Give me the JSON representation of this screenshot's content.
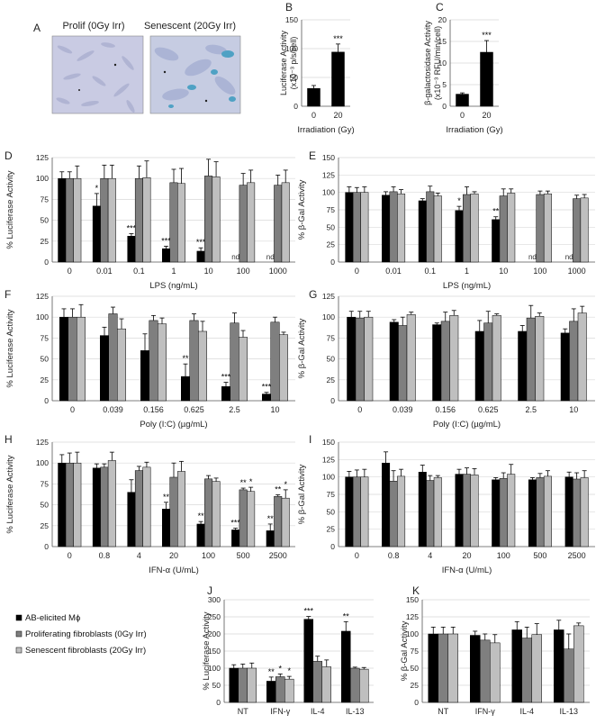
{
  "figure": {
    "legend": [
      {
        "label": "AB-elicited Mϕ",
        "color": "#000000"
      },
      {
        "label": "Proliferating fibroblasts (0Gy Irr)",
        "color": "#7f7f7f"
      },
      {
        "label": "Senescent fibroblasts (20Gy Irr)",
        "color": "#bfbfbf"
      }
    ],
    "images": {
      "panel": "A",
      "prolif_label": "Prolif (0Gy Irr)",
      "senescent_label": "Senescent (20Gy Irr)"
    }
  },
  "chart_data": [
    {
      "panel": "B",
      "type": "bar",
      "ylabel_line1": "Luciferase Activity",
      "ylabel_line2": "(x10⁻³ p/s/cell)",
      "xlabel": "Irradiation (Gy)",
      "categories": [
        "0",
        "20"
      ],
      "series": [
        {
          "values": [
            31,
            94
          ],
          "errors": [
            5,
            14
          ],
          "sig": [
            "",
            "***"
          ]
        }
      ],
      "ylim": [
        0,
        150
      ],
      "yticks": [
        "0",
        "50",
        "100",
        "150"
      ]
    },
    {
      "panel": "C",
      "type": "bar",
      "ylabel_line1": "β-galactosidase Activity",
      "ylabel_line2": "(x10⁻³ RFU/min/cell)",
      "xlabel": "Irradiation (Gy)",
      "categories": [
        "0",
        "20"
      ],
      "series": [
        {
          "values": [
            2.8,
            12.5
          ],
          "errors": [
            0.3,
            2.7
          ],
          "sig": [
            "",
            "***"
          ]
        }
      ],
      "ylim": [
        0,
        20
      ],
      "yticks": [
        "0",
        "5",
        "10",
        "15",
        "20"
      ]
    },
    {
      "panel": "D",
      "type": "bar",
      "ylabel": "% Luciferase Activity",
      "xlabel": "LPS (ng/mL)",
      "categories": [
        "0",
        "0.01",
        "0.1",
        "1",
        "10",
        "100",
        "1000"
      ],
      "series": [
        {
          "values": [
            100,
            67,
            31,
            16,
            13,
            null,
            null
          ],
          "errors": [
            8,
            15,
            3,
            3,
            4,
            0,
            0
          ],
          "sig": [
            "",
            "*",
            "***",
            "***",
            "***",
            "nd",
            "nd"
          ]
        },
        {
          "values": [
            100,
            100,
            100,
            95,
            103,
            92,
            92
          ],
          "errors": [
            8,
            16,
            15,
            16,
            20,
            14,
            12
          ],
          "sig": [
            "",
            "",
            "",
            "",
            "",
            "",
            ""
          ]
        },
        {
          "values": [
            100,
            100,
            101,
            94,
            102,
            95,
            95
          ],
          "errors": [
            15,
            16,
            20,
            18,
            18,
            15,
            15
          ],
          "sig": [
            "",
            "",
            "",
            "",
            "",
            "",
            ""
          ]
        }
      ],
      "ylim": [
        0,
        125
      ],
      "yticks": [
        "0",
        "25",
        "50",
        "75",
        "100",
        "125"
      ]
    },
    {
      "panel": "E",
      "type": "bar",
      "ylabel": "% β-Gal Activity",
      "xlabel": "LPS (ng/mL)",
      "categories": [
        "0",
        "0.01",
        "0.1",
        "1",
        "10",
        "100",
        "1000"
      ],
      "series": [
        {
          "values": [
            100,
            96,
            88,
            74,
            61,
            null,
            null
          ],
          "errors": [
            8,
            5,
            3,
            6,
            4,
            0,
            0
          ],
          "sig": [
            "",
            "",
            "",
            "*",
            "**",
            "nd",
            "nd"
          ]
        },
        {
          "values": [
            100,
            101,
            101,
            97,
            95,
            97,
            91
          ],
          "errors": [
            7,
            7,
            8,
            11,
            10,
            5,
            5
          ],
          "sig": [
            "",
            "",
            "",
            "",
            "",
            "",
            ""
          ]
        },
        {
          "values": [
            100,
            98,
            95,
            98,
            99,
            98,
            92
          ],
          "errors": [
            8,
            6,
            4,
            3,
            6,
            4,
            5
          ],
          "sig": [
            "",
            "",
            "",
            "",
            "",
            "",
            ""
          ]
        }
      ],
      "ylim": [
        0,
        150
      ],
      "yticks": [
        "0",
        "25",
        "50",
        "75",
        "100",
        "125",
        "150"
      ]
    },
    {
      "panel": "F",
      "type": "bar",
      "ylabel": "% Luciferase Activity",
      "xlabel": "Poly (I:C) (µg/mL)",
      "categories": [
        "0",
        "0.039",
        "0.156",
        "0.625",
        "2.5",
        "10"
      ],
      "series": [
        {
          "values": [
            100,
            78,
            60,
            29,
            17,
            8
          ],
          "errors": [
            10,
            10,
            20,
            15,
            5,
            2
          ],
          "sig": [
            "",
            "",
            "",
            "**",
            "***",
            "***"
          ]
        },
        {
          "values": [
            100,
            104,
            96,
            96,
            93,
            94
          ],
          "errors": [
            10,
            8,
            6,
            8,
            12,
            6
          ],
          "sig": [
            "",
            "",
            "",
            "",
            "",
            ""
          ]
        },
        {
          "values": [
            100,
            86,
            92,
            83,
            76,
            79
          ],
          "errors": [
            15,
            12,
            7,
            12,
            8,
            3
          ],
          "sig": [
            "",
            "",
            "",
            "",
            "",
            ""
          ]
        }
      ],
      "ylim": [
        0,
        125
      ],
      "yticks": [
        "0",
        "25",
        "50",
        "75",
        "100",
        "125"
      ]
    },
    {
      "panel": "G",
      "type": "bar",
      "ylabel": "% β-Gal Activity",
      "xlabel": "Poly (I:C) (µg/mL)",
      "categories": [
        "0",
        "0.039",
        "0.156",
        "0.625",
        "2.5",
        "10"
      ],
      "series": [
        {
          "values": [
            100,
            94,
            91,
            83,
            83,
            81
          ],
          "errors": [
            7,
            3,
            2,
            13,
            7,
            5
          ],
          "sig": [
            "",
            "",
            "",
            "",
            "",
            ""
          ]
        },
        {
          "values": [
            99,
            90,
            95,
            93,
            99,
            95
          ],
          "errors": [
            8,
            10,
            11,
            14,
            15,
            15
          ],
          "sig": [
            "",
            "",
            "",
            "",
            "",
            ""
          ]
        },
        {
          "values": [
            100,
            103,
            102,
            102,
            101,
            105
          ],
          "errors": [
            7,
            3,
            6,
            2,
            4,
            8
          ],
          "sig": [
            "",
            "",
            "",
            "",
            "",
            ""
          ]
        }
      ],
      "ylim": [
        0,
        125
      ],
      "yticks": [
        "0",
        "25",
        "50",
        "75",
        "100",
        "125"
      ]
    },
    {
      "panel": "H",
      "type": "bar",
      "ylabel": "% Luciferase Activity",
      "xlabel": "IFN-α (U/mL)",
      "categories": [
        "0",
        "0.8",
        "4",
        "20",
        "100",
        "500",
        "2500"
      ],
      "series": [
        {
          "values": [
            100,
            94,
            65,
            45,
            27,
            20,
            19
          ],
          "errors": [
            10,
            5,
            15,
            8,
            3,
            2,
            8
          ],
          "sig": [
            "",
            "",
            "",
            "**",
            "**",
            "***",
            "**"
          ]
        },
        {
          "values": [
            100,
            95,
            91,
            83,
            81,
            68,
            60
          ],
          "errors": [
            12,
            4,
            5,
            17,
            4,
            2,
            2
          ],
          "sig": [
            "",
            "",
            "",
            "",
            "",
            "**",
            "**"
          ]
        },
        {
          "values": [
            100,
            103,
            95,
            90,
            78,
            66,
            58
          ],
          "errors": [
            13,
            10,
            6,
            12,
            4,
            5,
            10
          ],
          "sig": [
            "",
            "",
            "",
            "",
            "",
            "*",
            "*"
          ]
        }
      ],
      "ylim": [
        0,
        125
      ],
      "yticks": [
        "0",
        "25",
        "50",
        "75",
        "100",
        "125"
      ]
    },
    {
      "panel": "I",
      "type": "bar",
      "ylabel": "% β-Gal Activity",
      "xlabel": "IFN-α (U/mL)",
      "categories": [
        "0",
        "0.8",
        "4",
        "20",
        "100",
        "500",
        "2500"
      ],
      "series": [
        {
          "values": [
            100,
            120,
            107,
            104,
            96,
            96,
            100
          ],
          "errors": [
            8,
            16,
            10,
            7,
            3,
            3,
            7
          ],
          "sig": [
            "",
            "",
            "",
            "",
            "",
            "",
            ""
          ]
        },
        {
          "values": [
            100,
            94,
            95,
            104,
            98,
            99,
            97
          ],
          "errors": [
            10,
            15,
            7,
            9,
            8,
            6,
            9
          ],
          "sig": [
            "",
            "",
            "",
            "",
            "",
            "",
            ""
          ]
        },
        {
          "values": [
            100,
            101,
            99,
            103,
            104,
            101,
            99
          ],
          "errors": [
            11,
            10,
            3,
            9,
            14,
            8,
            10
          ],
          "sig": [
            "",
            "",
            "",
            "",
            "",
            "",
            ""
          ]
        }
      ],
      "ylim": [
        0,
        150
      ],
      "yticks": [
        "0",
        "25",
        "50",
        "75",
        "100",
        "125",
        "150"
      ]
    },
    {
      "panel": "J",
      "type": "bar",
      "ylabel": "% Luciferase Activity",
      "xlabel": "",
      "categories": [
        "NT",
        "IFN-γ",
        "IL-4",
        "IL-13"
      ],
      "series": [
        {
          "values": [
            100,
            62,
            243,
            208
          ],
          "errors": [
            10,
            12,
            8,
            28
          ],
          "sig": [
            "",
            "**",
            "***",
            "**"
          ]
        },
        {
          "values": [
            100,
            75,
            120,
            100
          ],
          "errors": [
            12,
            8,
            15,
            3
          ],
          "sig": [
            "",
            "*",
            "",
            ""
          ]
        },
        {
          "values": [
            100,
            68,
            104,
            97
          ],
          "errors": [
            15,
            8,
            20,
            5
          ],
          "sig": [
            "",
            "*",
            "",
            ""
          ]
        }
      ],
      "ylim": [
        0,
        300
      ],
      "yticks": [
        "0",
        "50",
        "100",
        "150",
        "200",
        "250",
        "300"
      ]
    },
    {
      "panel": "K",
      "type": "bar",
      "ylabel": "% β-Gal Activity",
      "xlabel": "",
      "categories": [
        "NT",
        "IFN-γ",
        "IL-4",
        "IL-13"
      ],
      "series": [
        {
          "values": [
            100,
            98,
            106,
            106
          ],
          "errors": [
            10,
            6,
            12,
            14
          ],
          "sig": [
            "",
            "",
            "",
            ""
          ]
        },
        {
          "values": [
            100,
            91,
            94,
            78
          ],
          "errors": [
            10,
            9,
            16,
            22
          ],
          "sig": [
            "",
            "",
            "",
            ""
          ]
        },
        {
          "values": [
            100,
            87,
            99,
            112
          ],
          "errors": [
            10,
            12,
            16,
            4
          ],
          "sig": [
            "",
            "",
            "",
            ""
          ]
        }
      ],
      "ylim": [
        0,
        150
      ],
      "yticks": [
        "0",
        "25",
        "50",
        "75",
        "100",
        "125",
        "150"
      ]
    }
  ]
}
